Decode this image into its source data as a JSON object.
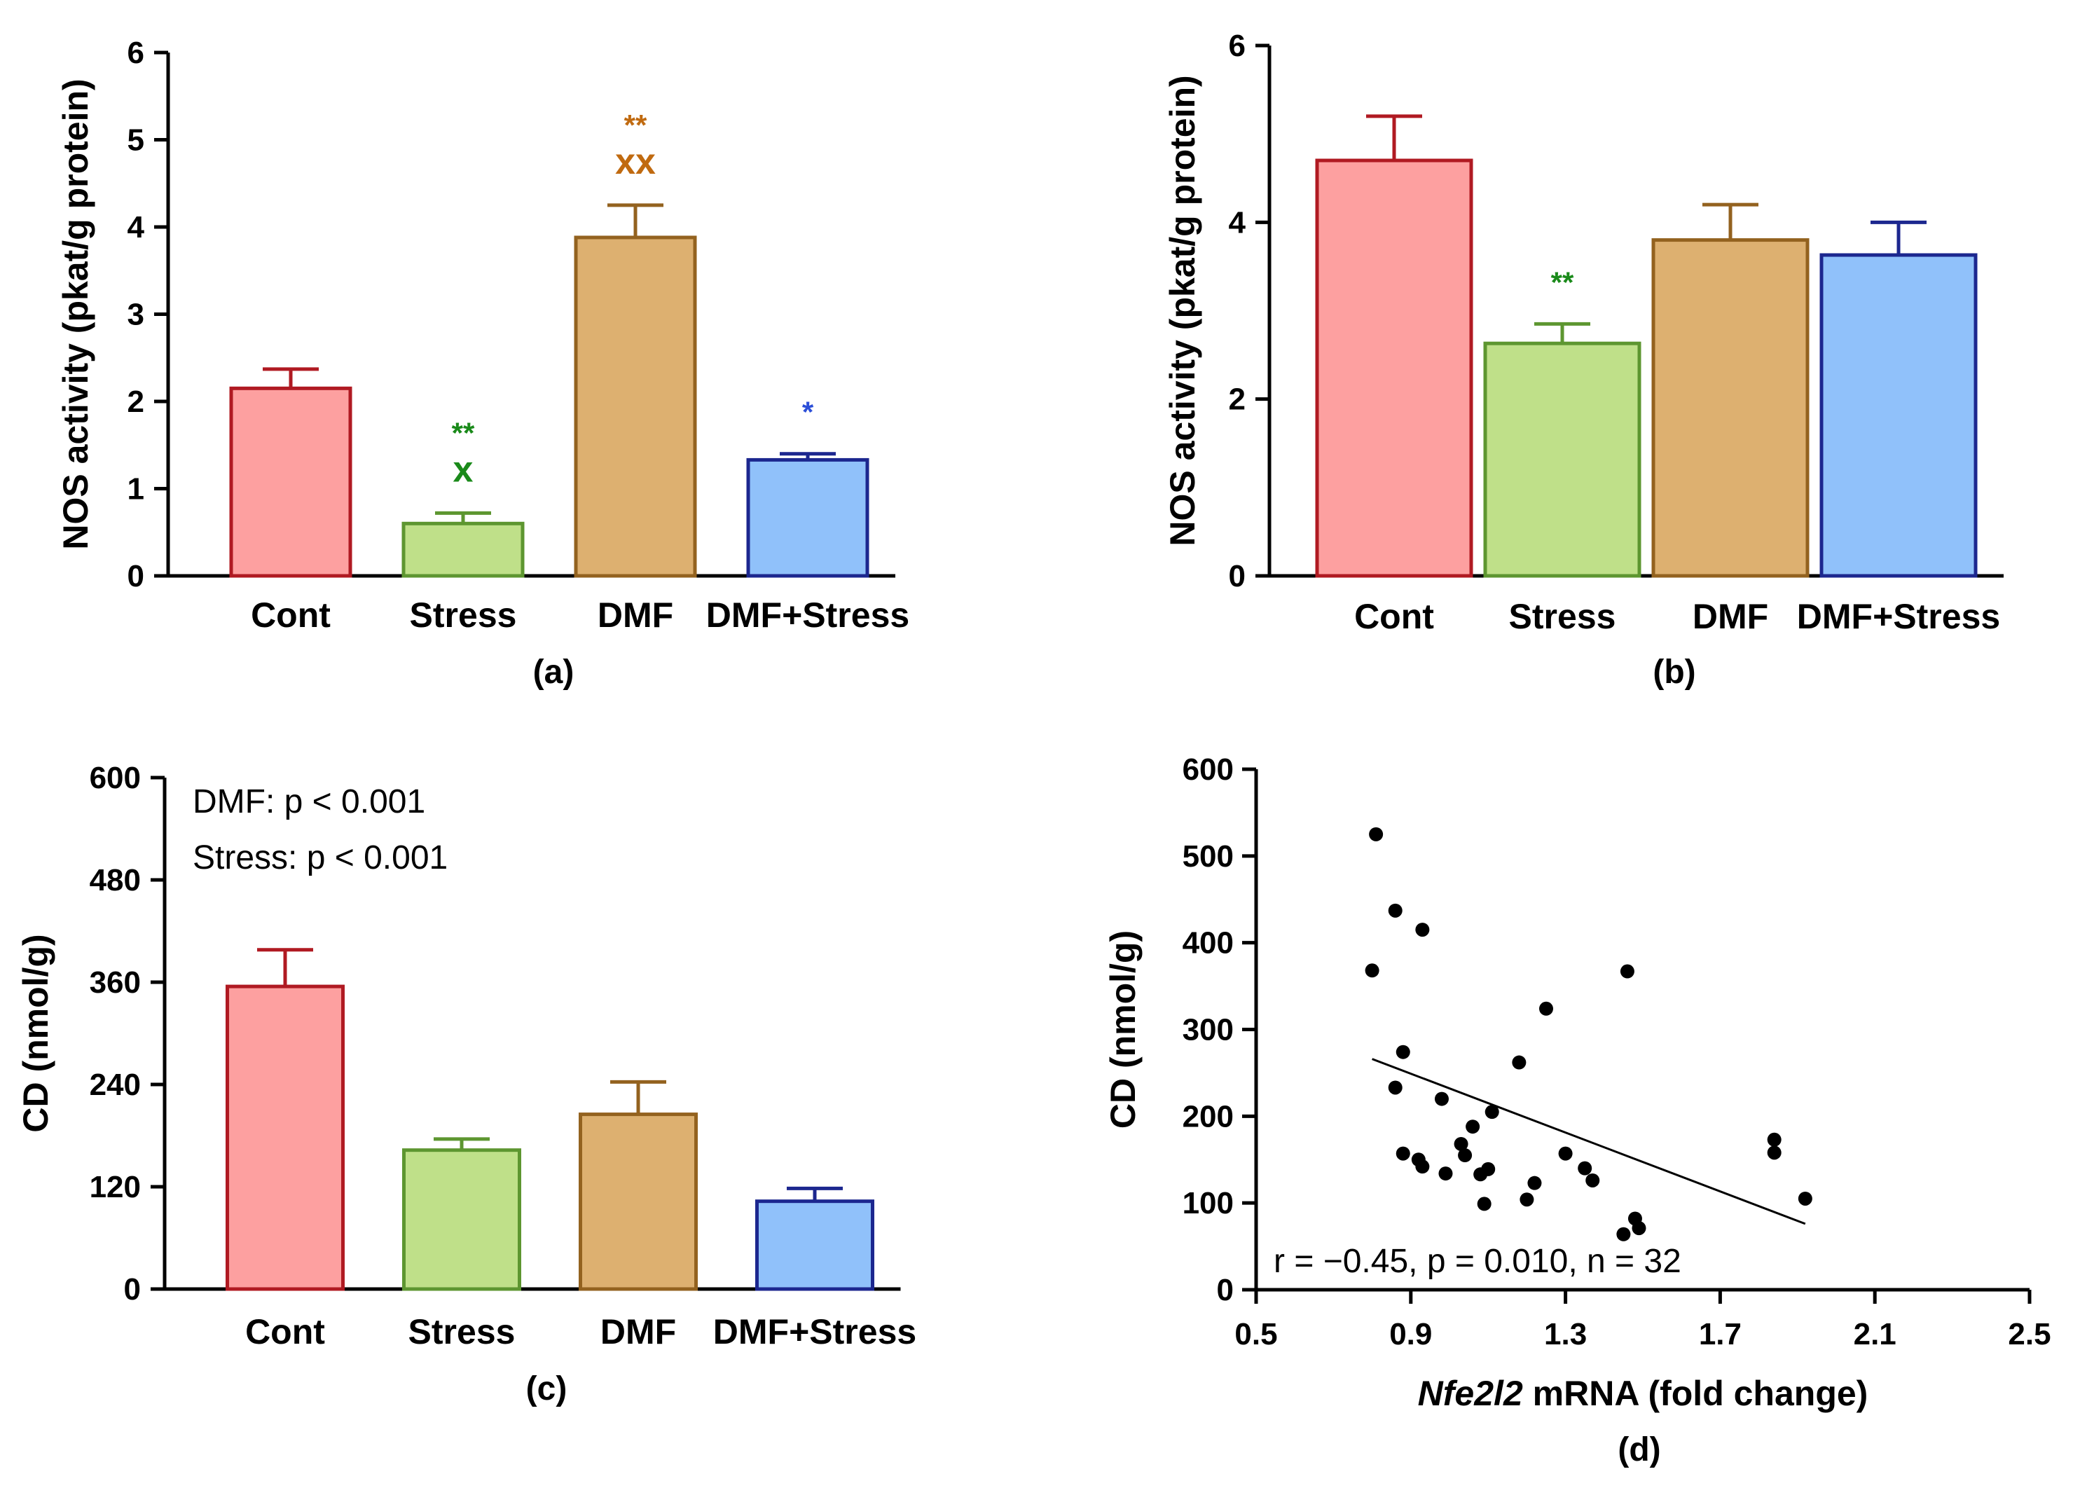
{
  "chart_data": [
    {
      "type": "bar",
      "panel_label": "(a)",
      "ylabel": "NOS activity (pkat/g protein)",
      "ylim": [
        0,
        6
      ],
      "yticks": [
        "0",
        "1",
        "2",
        "3",
        "4",
        "5",
        "6"
      ],
      "categories": [
        "Cont",
        "Stress",
        "DMF",
        "DMF+Stress"
      ],
      "values": [
        2.15,
        0.6,
        3.88,
        1.33
      ],
      "errors": [
        0.22,
        0.12,
        0.37,
        0.07
      ],
      "significance": [
        {
          "category": "Stress",
          "marks": [
            "**",
            "x"
          ],
          "color": "#1a8a1a"
        },
        {
          "category": "DMF",
          "marks": [
            "**",
            "xx"
          ],
          "color": "#c06a10"
        },
        {
          "category": "DMF+Stress",
          "marks": [
            "*"
          ],
          "color": "#2c4fd8"
        }
      ]
    },
    {
      "type": "bar",
      "panel_label": "(b)",
      "ylabel": "NOS activity (pkat/g protein)",
      "ylim": [
        0,
        6
      ],
      "yticks": [
        "0",
        "2",
        "4",
        "6"
      ],
      "categories": [
        "Cont",
        "Stress",
        "DMF",
        "DMF+Stress"
      ],
      "values": [
        4.7,
        2.63,
        3.8,
        3.63
      ],
      "errors": [
        0.5,
        0.22,
        0.4,
        0.37
      ],
      "significance": [
        {
          "category": "Stress",
          "marks": [
            "**"
          ],
          "color": "#1a8a1a"
        }
      ]
    },
    {
      "type": "bar",
      "panel_label": "(c)",
      "ylabel": "CD (nmol/g)",
      "ylim": [
        0,
        600
      ],
      "yticks": [
        "0",
        "120",
        "240",
        "360",
        "480",
        "600"
      ],
      "categories": [
        "Cont",
        "Stress",
        "DMF",
        "DMF+Stress"
      ],
      "values": [
        355,
        163,
        205,
        103
      ],
      "errors": [
        43,
        13,
        38,
        15
      ],
      "annotations": [
        "DMF: p < 0.001",
        "Stress: p < 0.001"
      ]
    },
    {
      "type": "scatter",
      "panel_label": "(d)",
      "ylabel": "CD (nmol/g)",
      "xlabel_gene": "Nfe2l2",
      "xlabel_rest": " mRNA (fold change)",
      "xlim": [
        0.5,
        2.5
      ],
      "ylim": [
        0,
        600
      ],
      "xticks": [
        "0.5",
        "0.9",
        "1.3",
        "1.7",
        "2.1",
        "2.5"
      ],
      "yticks": [
        "0",
        "100",
        "200",
        "300",
        "400",
        "500",
        "600"
      ],
      "stat_text": "r = −0.45, p = 0.010, n = 32",
      "regression": {
        "x": [
          0.8,
          1.92
        ],
        "y": [
          266,
          76
        ]
      },
      "points": [
        {
          "x": 0.81,
          "y": 525
        },
        {
          "x": 0.86,
          "y": 437
        },
        {
          "x": 0.8,
          "y": 368
        },
        {
          "x": 0.93,
          "y": 415
        },
        {
          "x": 0.88,
          "y": 274
        },
        {
          "x": 0.86,
          "y": 233
        },
        {
          "x": 0.88,
          "y": 157
        },
        {
          "x": 0.92,
          "y": 150
        },
        {
          "x": 0.93,
          "y": 142
        },
        {
          "x": 0.98,
          "y": 220
        },
        {
          "x": 0.99,
          "y": 134
        },
        {
          "x": 1.03,
          "y": 168
        },
        {
          "x": 1.04,
          "y": 155
        },
        {
          "x": 1.06,
          "y": 188
        },
        {
          "x": 1.08,
          "y": 133
        },
        {
          "x": 1.1,
          "y": 139
        },
        {
          "x": 1.11,
          "y": 205
        },
        {
          "x": 1.09,
          "y": 99
        },
        {
          "x": 1.18,
          "y": 262
        },
        {
          "x": 1.22,
          "y": 123
        },
        {
          "x": 1.2,
          "y": 104
        },
        {
          "x": 1.25,
          "y": 324
        },
        {
          "x": 1.3,
          "y": 157
        },
        {
          "x": 1.35,
          "y": 140
        },
        {
          "x": 1.37,
          "y": 126
        },
        {
          "x": 1.46,
          "y": 367
        },
        {
          "x": 1.45,
          "y": 64
        },
        {
          "x": 1.48,
          "y": 82
        },
        {
          "x": 1.49,
          "y": 71
        },
        {
          "x": 1.84,
          "y": 173
        },
        {
          "x": 1.84,
          "y": 158
        },
        {
          "x": 1.92,
          "y": 105
        }
      ]
    }
  ],
  "colors": {
    "fills": [
      "#fda0a0",
      "#bfe089",
      "#ddb070",
      "#90c1fa"
    ],
    "strokes": [
      "#b01a22",
      "#5d9630",
      "#93621f",
      "#1c278f"
    ]
  }
}
